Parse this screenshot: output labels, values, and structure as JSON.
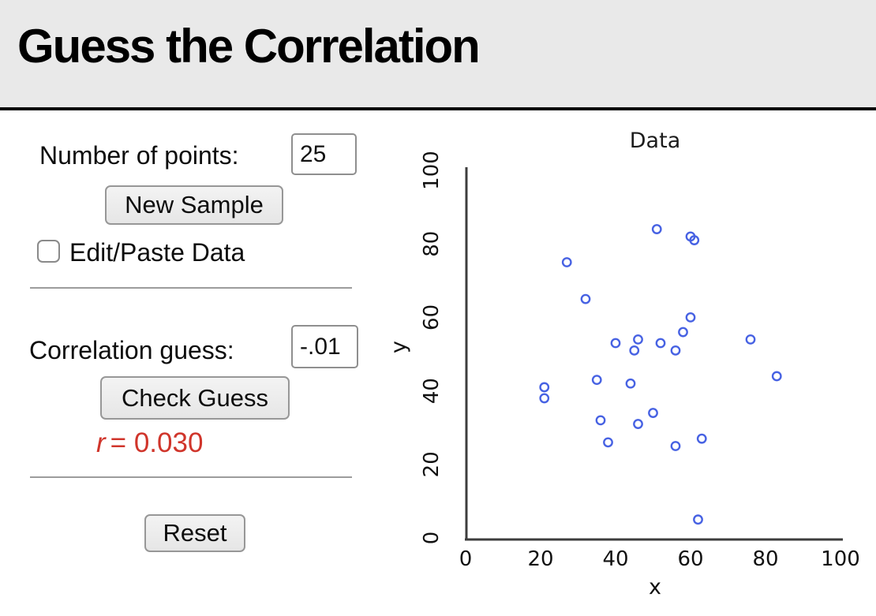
{
  "header": {
    "title": "Guess the Correlation"
  },
  "controls": {
    "points_label": "Number of points:",
    "points_value": "25",
    "new_sample_label": "New Sample",
    "edit_paste_label": "Edit/Paste Data",
    "edit_paste_checked": false,
    "guess_label": "Correlation guess:",
    "guess_value": "-.01",
    "check_guess_label": "Check Guess",
    "reset_label": "Reset"
  },
  "result": {
    "symbol": "r",
    "rest": "= 0.030",
    "value": "0.030",
    "color": "#d0352b"
  },
  "colors": {
    "header_bg": "#e9e9e9",
    "point_blue": "#4762e3",
    "result_red": "#d0352b",
    "axis": "#3d3d3d"
  },
  "chart_data": {
    "type": "scatter",
    "title": "Data",
    "xlabel": "x",
    "ylabel": "y",
    "xlim": [
      0,
      100
    ],
    "ylim": [
      0,
      100
    ],
    "xticks": [
      0,
      20,
      40,
      60,
      80,
      100
    ],
    "yticks": [
      0,
      20,
      40,
      60,
      80,
      100
    ],
    "grid": false,
    "legend": null,
    "marker": "open-circle",
    "point_color": "#4762e3",
    "points": [
      [
        51,
        84
      ],
      [
        60,
        82
      ],
      [
        61,
        81
      ],
      [
        27,
        75
      ],
      [
        32,
        65
      ],
      [
        60,
        60
      ],
      [
        58,
        56
      ],
      [
        46,
        54
      ],
      [
        40,
        53
      ],
      [
        52,
        53
      ],
      [
        45,
        51
      ],
      [
        56,
        51
      ],
      [
        76,
        54
      ],
      [
        83,
        44
      ],
      [
        63,
        27
      ],
      [
        21,
        41
      ],
      [
        21,
        38
      ],
      [
        35,
        43
      ],
      [
        44,
        42
      ],
      [
        50,
        34
      ],
      [
        36,
        32
      ],
      [
        46,
        31
      ],
      [
        38,
        26
      ],
      [
        56,
        25
      ],
      [
        62,
        5
      ]
    ]
  }
}
